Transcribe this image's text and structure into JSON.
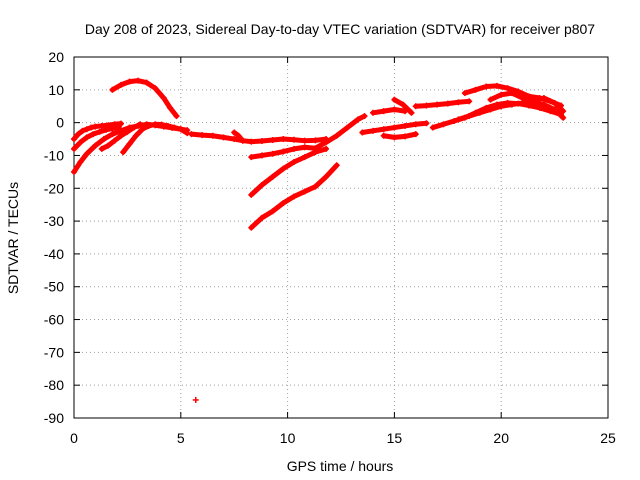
{
  "chart_data": {
    "type": "scatter",
    "title": "Day 208 of 2023, Sidereal Day-to-day VTEC variation (SDTVAR) for receiver p807",
    "xlabel": "GPS time / hours",
    "ylabel": "SDTVAR / TECUs",
    "xlim": [
      0,
      25
    ],
    "ylim": [
      -90,
      20
    ],
    "xticks": [
      0,
      5,
      10,
      15,
      20,
      25
    ],
    "yticks": [
      20,
      10,
      0,
      -10,
      -20,
      -30,
      -40,
      -50,
      -60,
      -70,
      -80,
      -90
    ],
    "grid": true,
    "marker": "+",
    "color": "#ff0000",
    "series": [
      {
        "name": "arc-top-early",
        "x": [
          1.8,
          2.2,
          2.6,
          3.0,
          3.4,
          3.8,
          4.2,
          4.5,
          4.8
        ],
        "y": [
          10,
          11.5,
          12.5,
          12.8,
          12.2,
          10.5,
          7.5,
          4.5,
          2
        ]
      },
      {
        "name": "arc-early-1",
        "x": [
          0,
          0.2,
          0.4,
          0.6,
          0.8,
          1.0,
          1.3,
          1.6,
          1.9,
          2.2
        ],
        "y": [
          -5,
          -3.5,
          -2.5,
          -2,
          -1.5,
          -1.2,
          -1,
          -0.8,
          -0.5,
          -0.3
        ]
      },
      {
        "name": "arc-early-2",
        "x": [
          0,
          0.3,
          0.6,
          0.9,
          1.2,
          1.5,
          1.8,
          2.1
        ],
        "y": [
          -8,
          -6,
          -4.5,
          -3.5,
          -2.8,
          -2.2,
          -1.8,
          -1.3
        ]
      },
      {
        "name": "arc-early-3",
        "x": [
          0,
          0.3,
          0.6,
          1.0,
          1.4,
          1.8,
          2.2,
          2.6,
          3.0,
          3.4,
          3.8,
          4.2,
          4.6,
          5.0,
          5.3
        ],
        "y": [
          -15,
          -12,
          -9.5,
          -7,
          -5,
          -3.5,
          -2.5,
          -1.5,
          -1,
          -0.5,
          -0.8,
          -1.2,
          -1.6,
          -2,
          -2.3
        ]
      },
      {
        "name": "arc-early-4",
        "x": [
          1.3,
          1.6,
          1.9,
          2.2,
          2.5,
          2.8,
          3.1
        ],
        "y": [
          -8,
          -7,
          -5.5,
          -4,
          -2.8,
          -1.5,
          -0.5
        ]
      },
      {
        "name": "arc-early-5",
        "x": [
          2.3,
          2.6,
          2.9,
          3.2,
          3.5,
          3.8,
          4.1,
          4.4,
          4.7,
          5.0,
          5.3
        ],
        "y": [
          -9,
          -6.5,
          -4,
          -2,
          -1,
          -0.5,
          -0.6,
          -1,
          -1.5,
          -2,
          -3.2
        ]
      },
      {
        "name": "arc-mid-1",
        "x": [
          5.5,
          6.0,
          6.5,
          7.0,
          7.5,
          7.9,
          8.3,
          8.8,
          9.3,
          9.8,
          10.3,
          10.8,
          11.3,
          11.8
        ],
        "y": [
          -3.5,
          -3.8,
          -4,
          -4.5,
          -5,
          -5.5,
          -5.8,
          -5.6,
          -5.3,
          -5,
          -5.2,
          -5.5,
          -5.4,
          -5
        ]
      },
      {
        "name": "arc-mid-2",
        "x": [
          7.5,
          7.7,
          7.9
        ],
        "y": [
          -3,
          -4,
          -5.5
        ]
      },
      {
        "name": "arc-mid-3",
        "x": [
          8.3,
          8.8,
          9.3,
          9.8,
          10.3,
          10.8,
          11.3,
          11.8,
          12.3,
          12.8,
          13.3,
          13.6
        ],
        "y": [
          -10.5,
          -10,
          -9.5,
          -8.8,
          -8,
          -7.5,
          -7.8,
          -6,
          -4,
          -1.5,
          1,
          2
        ]
      },
      {
        "name": "arc-mid-4",
        "x": [
          8.3,
          8.8,
          9.3,
          9.8,
          10.3,
          10.8,
          11.3,
          11.8
        ],
        "y": [
          -22,
          -19,
          -16.5,
          -14,
          -12,
          -10.5,
          -9,
          -8
        ]
      },
      {
        "name": "arc-mid-5",
        "x": [
          8.3,
          8.8,
          9.3,
          9.8,
          10.3,
          10.8,
          11.3,
          11.8,
          12.3
        ],
        "y": [
          -32,
          -29,
          -27,
          -24.5,
          -22.5,
          -21,
          -19.5,
          -16.5,
          -13
        ]
      },
      {
        "name": "arc-late-1",
        "x": [
          13.5,
          14.0,
          14.5,
          15.0,
          15.5,
          16.0,
          16.5
        ],
        "y": [
          -3,
          -2.5,
          -2,
          -1.5,
          -1,
          -0.5,
          -0.2
        ]
      },
      {
        "name": "arc-late-2",
        "x": [
          14.0,
          14.5,
          15.0,
          15.5
        ],
        "y": [
          3,
          3.5,
          4,
          3.5
        ]
      },
      {
        "name": "arc-late-3",
        "x": [
          14.5,
          15.0,
          15.5,
          16.0
        ],
        "y": [
          -4,
          -4.5,
          -4.2,
          -3.5
        ]
      },
      {
        "name": "arc-late-4",
        "x": [
          15.0,
          15.4,
          15.8
        ],
        "y": [
          7,
          5.5,
          3
        ]
      },
      {
        "name": "arc-late-5",
        "x": [
          16.0,
          16.5,
          17.0,
          17.5,
          18.0,
          18.5
        ],
        "y": [
          5,
          5.2,
          5.5,
          5.8,
          6.2,
          6.5
        ]
      },
      {
        "name": "arc-late-6",
        "x": [
          16.8,
          17.3,
          17.8,
          18.3,
          18.8,
          19.3,
          19.8,
          20.3,
          20.8,
          21.3,
          21.8,
          22.3,
          22.8
        ],
        "y": [
          -1.5,
          -0.5,
          0.5,
          1.5,
          3,
          4.5,
          5.5,
          6,
          5.8,
          5.2,
          4.5,
          3.5,
          2.5
        ]
      },
      {
        "name": "arc-late-7",
        "x": [
          18.3,
          18.8,
          19.3,
          19.8,
          20.3,
          20.8,
          21.3,
          21.8,
          22.3,
          22.8
        ],
        "y": [
          9,
          10,
          11,
          11.2,
          10.5,
          9.5,
          8,
          7.5,
          6.5,
          5.2
        ]
      },
      {
        "name": "arc-late-8",
        "x": [
          19.5,
          20.0,
          20.5,
          21.0,
          21.5,
          22.0,
          22.5,
          22.9
        ],
        "y": [
          7,
          8.5,
          9,
          7.5,
          6.5,
          7.5,
          6,
          3.5
        ]
      },
      {
        "name": "arc-late-9",
        "x": [
          18.0,
          18.5,
          19.0,
          19.5,
          20.0,
          20.5,
          21.0,
          21.5,
          22.0,
          22.5,
          22.9
        ],
        "y": [
          1,
          2,
          3,
          4,
          5,
          5.5,
          6,
          6,
          5.5,
          4,
          1.5
        ]
      },
      {
        "name": "outlier",
        "x": [
          5.7
        ],
        "y": [
          -84.5
        ]
      }
    ]
  }
}
